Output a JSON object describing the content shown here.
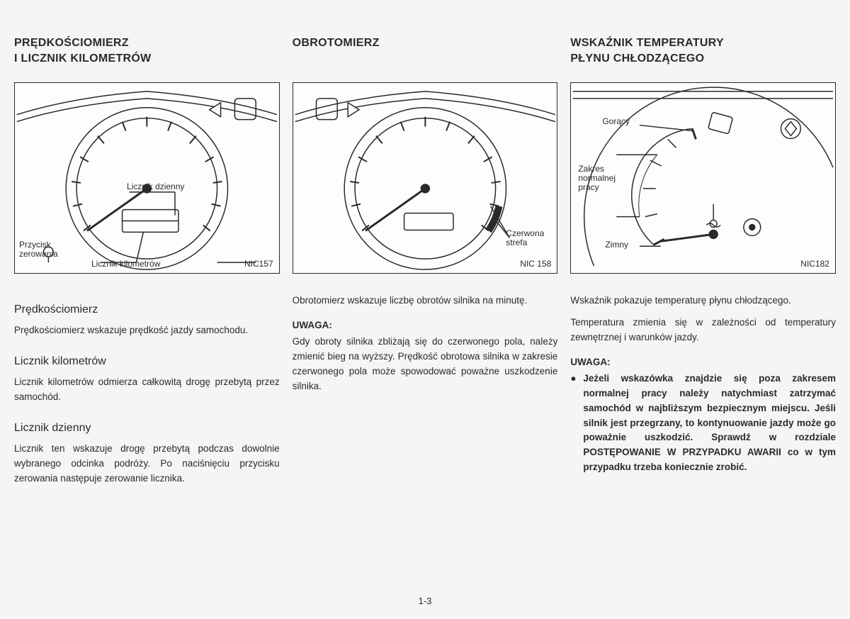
{
  "page_number": "1-3",
  "columns": [
    {
      "heading": "PRĘDKOŚCIOMIERZ\nI LICZNIK KILOMETRÓW",
      "figure": {
        "code": "NIC157",
        "labels": {
          "licznik_dzienny": "Licznik dzienny",
          "przycisk": "Przycisk\nzerowania",
          "licznik_km": "Licznik kilometrów"
        },
        "line_color": "#2a2a2a",
        "bg": "#fdfdfb"
      },
      "sections": [
        {
          "title": "Prędkościomierz",
          "text": "Prędkościomierz wskazuje prędkość jazdy samochodu."
        },
        {
          "title": "Licznik kilometrów",
          "text": "Licznik kilometrów odmierza całkowitą drogę przebytą przez samochód."
        },
        {
          "title": "Licznik dzienny",
          "text": "Licznik ten wskazuje drogę przebytą podczas dowolnie wybranego odcinka podróży. Po naciśnięciu przycisku zerowania następuje zerowanie licznika."
        }
      ]
    },
    {
      "heading": "OBROTOMIERZ",
      "figure": {
        "code": "NIC 158",
        "labels": {
          "czerwona_strefa": "Czerwona\nstrefa"
        },
        "line_color": "#2a2a2a",
        "bg": "#fdfdfb"
      },
      "intro": "Obrotomierz wskazuje liczbę obrotów silnika na minutę.",
      "caution_label": "UWAGA:",
      "caution_text": "Gdy obroty silnika zbliżają się do czerwonego pola, należy zmienić bieg na wyższy. Prędkość obrotowa silnika w zakresie czerwonego pola może spowodować poważne uszkodzenie silnika."
    },
    {
      "heading": "WSKAŹNIK TEMPERATURY\nPŁYNU CHŁODZĄCEGO",
      "figure": {
        "code": "NIC182",
        "labels": {
          "goracy": "Gorący",
          "zakres": "Zakres\nnormalnej\npracy",
          "zimny": "Zimny"
        },
        "line_color": "#2a2a2a",
        "bg": "#fdfdfb"
      },
      "intro": "Wskaźnik pokazuje temperaturę płynu chłodzącego.",
      "text2": "Temperatura zmienia się w zależności od temperatury zewnętrznej i warunków jazdy.",
      "caution_label": "UWAGA:",
      "bullet": "Jeżeli wskazówka znajdzie się poza zakresem normalnej pracy należy natychmiast zatrzymać samochód w najbliższym bezpiecznym miejscu. Jeśli silnik jest przegrzany, to kontynuowanie jazdy może go poważnie uszkodzić. Sprawdź w rozdziale POSTĘPOWANIE W PRZYPADKU AWARII co w tym przypadku trzeba koniecznie zrobić."
    }
  ]
}
